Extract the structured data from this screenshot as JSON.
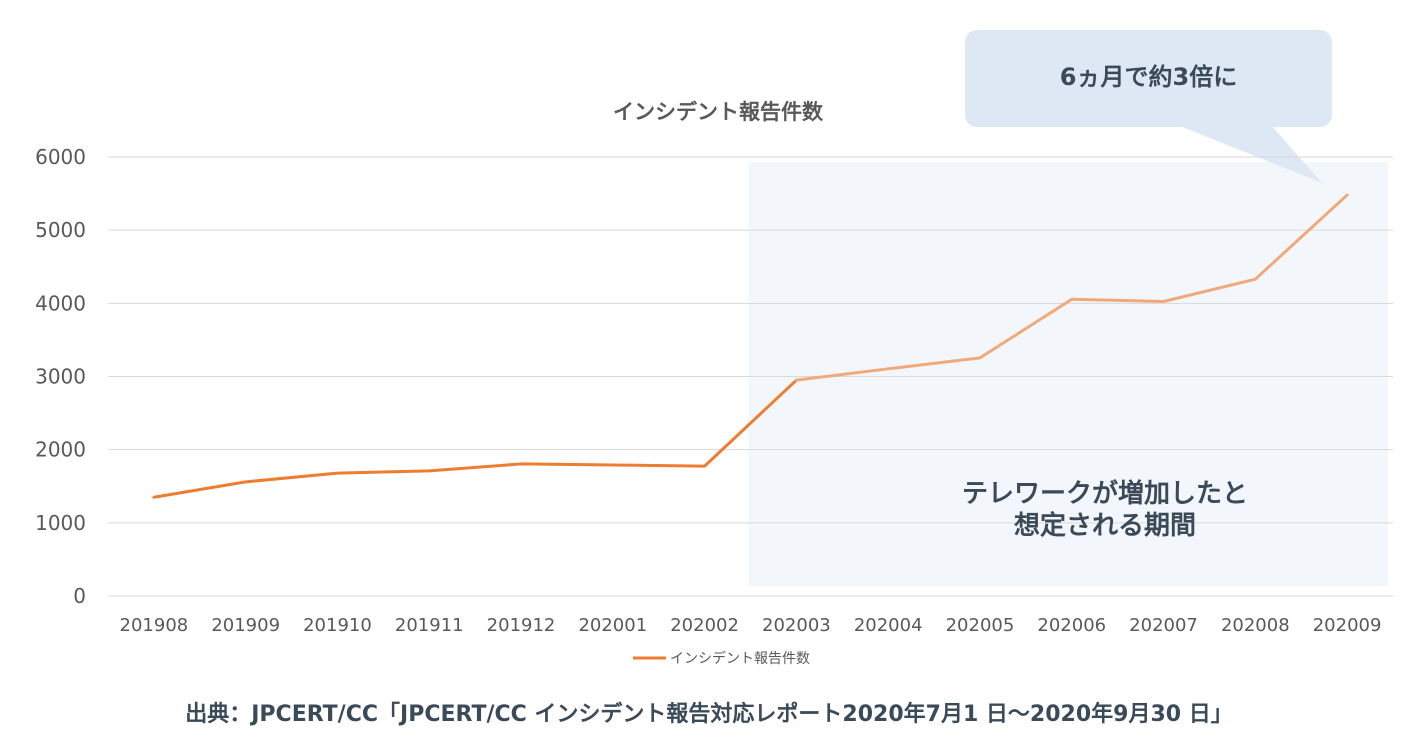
{
  "chart_data": {
    "type": "line",
    "title": "インシデント報告件数",
    "categories": [
      "201908",
      "201909",
      "201910",
      "201911",
      "201912",
      "202001",
      "202002",
      "202003",
      "202004",
      "202005",
      "202006",
      "202007",
      "202008",
      "202009"
    ],
    "series": [
      {
        "name": "インシデント報告件数",
        "values": [
          1350,
          1560,
          1680,
          1710,
          1805,
          1790,
          1775,
          2950,
          3105,
          3255,
          4055,
          4025,
          4330,
          5480
        ]
      }
    ],
    "ylim": [
      0,
      6000
    ],
    "yticks": [
      0,
      1000,
      2000,
      3000,
      4000,
      5000,
      6000
    ],
    "xlabel": "",
    "ylabel": "",
    "grid": true,
    "legend": "bottom-center",
    "highlight": {
      "from_category": "202003",
      "to_category": "202009",
      "label_lines": [
        "テレワークが増加したと",
        "想定される期間"
      ]
    },
    "annotation": {
      "text": "6ヵ月で約3倍に",
      "points_to": "202009"
    }
  },
  "source_note": "出典：JPCERT/CC「JPCERT/CC インシデント報告対応レポート2020年7月1 日〜2020年9月30 日」",
  "colors": {
    "line": "#ed7d31",
    "line_highlight": "#f0a97a",
    "highlight_fill": "#f3f7fb",
    "callout_fill": "#dde8f4",
    "grid": "#d9d9d9",
    "axis_text": "#595959",
    "title_text": "#595959",
    "note_text": "#3b4a59"
  }
}
